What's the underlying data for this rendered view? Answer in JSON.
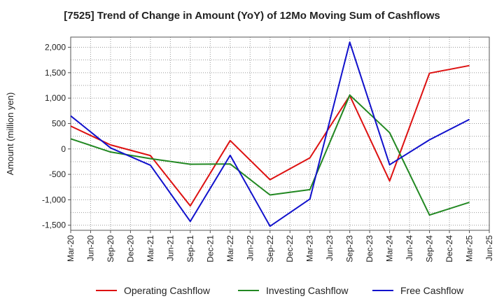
{
  "chart_data": {
    "type": "line",
    "title": "[7525]  Trend of Change in Amount (YoY) of 12Mo Moving Sum of Cashflows",
    "ylabel": "Amount (million yen)",
    "xlabel": "",
    "ylim": [
      -1600,
      2200
    ],
    "y_ticks": [
      -1500,
      -1000,
      -500,
      0,
      500,
      1000,
      1500,
      2000
    ],
    "y_tick_labels": [
      "-1,500",
      "-1,000",
      "-500",
      "0",
      "500",
      "1,000",
      "1,500",
      "2,000"
    ],
    "categories": [
      "Mar-20",
      "Jun-20",
      "Sep-20",
      "Dec-20",
      "Mar-21",
      "Jun-21",
      "Sep-21",
      "Dec-21",
      "Mar-22",
      "Jun-22",
      "Sep-22",
      "Dec-22",
      "Mar-23",
      "Jun-23",
      "Sep-23",
      "Dec-23",
      "Mar-24",
      "Jun-24",
      "Sep-24",
      "Dec-24",
      "Mar-25",
      "Jun-25"
    ],
    "grid": true,
    "series": [
      {
        "name": "Operating Cashflow",
        "color": "#dd1111",
        "points": [
          {
            "x": "Mar-20",
            "y": 450
          },
          {
            "x": "Sep-20",
            "y": 80
          },
          {
            "x": "Mar-21",
            "y": -130
          },
          {
            "x": "Sep-21",
            "y": -1120
          },
          {
            "x": "Mar-22",
            "y": 165
          },
          {
            "x": "Sep-22",
            "y": -605
          },
          {
            "x": "Mar-23",
            "y": -175
          },
          {
            "x": "Sep-23",
            "y": 1050
          },
          {
            "x": "Mar-24",
            "y": -630
          },
          {
            "x": "Sep-24",
            "y": 1490
          },
          {
            "x": "Mar-25",
            "y": 1640
          }
        ]
      },
      {
        "name": "Investing Cashflow",
        "color": "#228822",
        "points": [
          {
            "x": "Mar-20",
            "y": 200
          },
          {
            "x": "Sep-20",
            "y": -60
          },
          {
            "x": "Mar-21",
            "y": -190
          },
          {
            "x": "Sep-21",
            "y": -300
          },
          {
            "x": "Mar-22",
            "y": -295
          },
          {
            "x": "Sep-22",
            "y": -905
          },
          {
            "x": "Mar-23",
            "y": -800
          },
          {
            "x": "Sep-23",
            "y": 1060
          },
          {
            "x": "Mar-24",
            "y": 320
          },
          {
            "x": "Sep-24",
            "y": -1300
          },
          {
            "x": "Mar-25",
            "y": -1050
          }
        ]
      },
      {
        "name": "Free Cashflow",
        "color": "#1111cc",
        "points": [
          {
            "x": "Mar-20",
            "y": 650
          },
          {
            "x": "Sep-20",
            "y": 20
          },
          {
            "x": "Mar-21",
            "y": -320
          },
          {
            "x": "Sep-21",
            "y": -1425
          },
          {
            "x": "Mar-22",
            "y": -125
          },
          {
            "x": "Sep-22",
            "y": -1520
          },
          {
            "x": "Mar-23",
            "y": -985
          },
          {
            "x": "Sep-23",
            "y": 2100
          },
          {
            "x": "Mar-24",
            "y": -310
          },
          {
            "x": "Sep-24",
            "y": 180
          },
          {
            "x": "Mar-25",
            "y": 580
          }
        ]
      }
    ],
    "legend_position": "bottom"
  }
}
